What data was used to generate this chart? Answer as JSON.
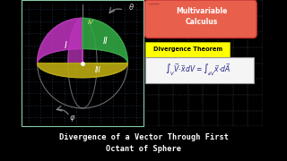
{
  "outer_bg": "#000000",
  "left_panel_bg": "#1a1a2e",
  "right_panel_bg": "#e8e8e0",
  "bottom_bar_bg": "#1a1a1a",
  "bottom_text": "Divergence of a Vector Through First\nOctant of Sphere",
  "bottom_text_color": "#ffffff",
  "title_box_color": "#e8604c",
  "title_text": "Multivariable\nCalculus",
  "title_text_color": "#ffffff",
  "divergence_label": "Divergence Theorem",
  "divergence_label_bg": "#ffff00",
  "region_I_color": "#bb33bb",
  "region_II_color": "#33aa44",
  "region_III_color": "#bbaa11",
  "roman_color": "#ffffff",
  "grid_color": "#334466",
  "sphere_color": "#999999",
  "arrow_color": "#888888",
  "border_color": "#88ccaa"
}
